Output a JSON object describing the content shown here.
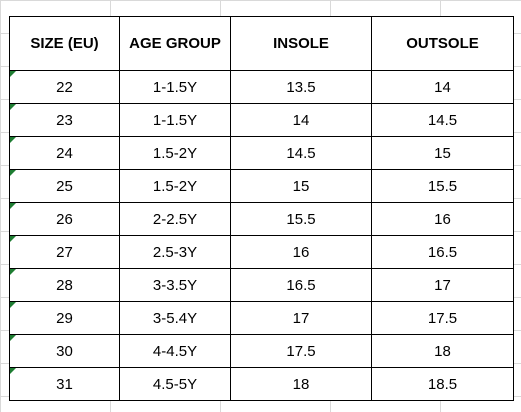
{
  "table": {
    "headers": [
      "SIZE (EU)",
      "AGE GROUP",
      "INSOLE",
      "OUTSOLE"
    ],
    "rows": [
      [
        "22",
        "1-1.5Y",
        "13.5",
        "14"
      ],
      [
        "23",
        "1-1.5Y",
        "14",
        "14.5"
      ],
      [
        "24",
        "1.5-2Y",
        "14.5",
        "15"
      ],
      [
        "25",
        "1.5-2Y",
        "15",
        "15.5"
      ],
      [
        "26",
        "2-2.5Y",
        "15.5",
        "16"
      ],
      [
        "27",
        "2.5-3Y",
        "16",
        "16.5"
      ],
      [
        "28",
        "3-3.5Y",
        "16.5",
        "17"
      ],
      [
        "29",
        "3-5.4Y",
        "17",
        "17.5"
      ],
      [
        "30",
        "4-4.5Y",
        "17.5",
        "18"
      ],
      [
        "31",
        "4.5-5Y",
        "18",
        "18.5"
      ]
    ]
  },
  "colors": {
    "grid_line": "#d9d9d9",
    "cell_border": "#000000",
    "indicator": "#1e7d32"
  },
  "icons": {
    "cell_marker": "error-indicator-triangle-icon"
  }
}
